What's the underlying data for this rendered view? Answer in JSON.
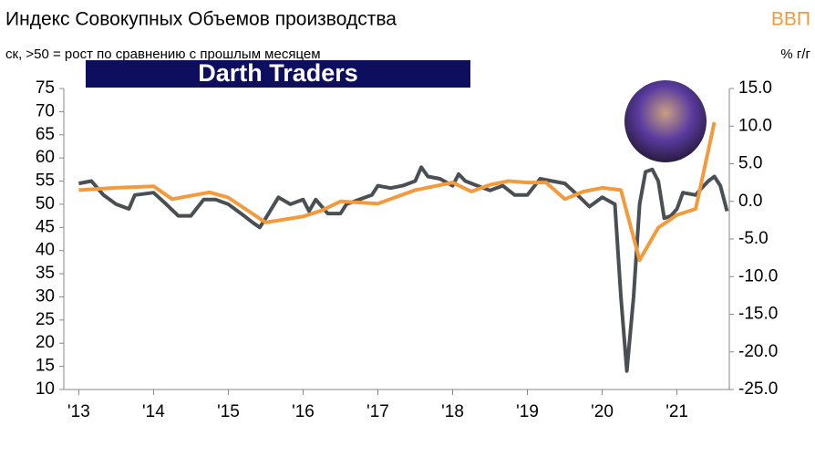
{
  "chart_data": {
    "type": "line",
    "title": "Индекс Совокупных Объемов производства",
    "subtitle": "ск, >50 = рост по сравнению с прошлым месяцем",
    "y2_title": "ВВП",
    "y2_label": "% г/г",
    "watermark": "Darth Traders",
    "xlim": [
      2012.8,
      2021.7
    ],
    "xticks": [
      {
        "value": 2013,
        "label": "'13"
      },
      {
        "value": 2014,
        "label": "'14"
      },
      {
        "value": 2015,
        "label": "'15"
      },
      {
        "value": 2016,
        "label": "'16"
      },
      {
        "value": 2017,
        "label": "'17"
      },
      {
        "value": 2018,
        "label": "'18"
      },
      {
        "value": 2019,
        "label": "'19"
      },
      {
        "value": 2020,
        "label": "'20"
      },
      {
        "value": 2021,
        "label": "'21"
      }
    ],
    "ylim": [
      10,
      75
    ],
    "yticks": [
      10,
      15,
      20,
      25,
      30,
      35,
      40,
      45,
      50,
      55,
      60,
      65,
      70,
      75
    ],
    "y2lim": [
      -25,
      15
    ],
    "y2ticks": [
      {
        "value": -25,
        "label": "-25.0"
      },
      {
        "value": -20,
        "label": "-20.0"
      },
      {
        "value": -15,
        "label": "-15.0"
      },
      {
        "value": -10,
        "label": "-10.0"
      },
      {
        "value": -5,
        "label": "-5.0"
      },
      {
        "value": 0,
        "label": "0.0"
      },
      {
        "value": 5,
        "label": "5.0"
      },
      {
        "value": 10,
        "label": "10.0"
      },
      {
        "value": 15,
        "label": "15.0"
      }
    ],
    "series": [
      {
        "color": "#4a4f54",
        "x": [
          2013.0,
          2013.17,
          2013.33,
          2013.5,
          2013.67,
          2013.75,
          2014.0,
          2014.17,
          2014.33,
          2014.5,
          2014.67,
          2014.83,
          2015.0,
          2015.17,
          2015.33,
          2015.42,
          2015.5,
          2015.67,
          2015.83,
          2016.0,
          2016.08,
          2016.17,
          2016.33,
          2016.5,
          2016.58,
          2016.75,
          2016.92,
          2017.0,
          2017.17,
          2017.33,
          2017.5,
          2017.58,
          2017.67,
          2017.83,
          2018.0,
          2018.08,
          2018.17,
          2018.33,
          2018.5,
          2018.67,
          2018.83,
          2019.0,
          2019.17,
          2019.33,
          2019.5,
          2019.67,
          2019.83,
          2020.0,
          2020.17,
          2020.25,
          2020.33,
          2020.42,
          2020.5,
          2020.58,
          2020.67,
          2020.75,
          2020.83,
          2020.92,
          2021.0,
          2021.08,
          2021.25,
          2021.33,
          2021.42,
          2021.5,
          2021.58,
          2021.67
        ],
        "values": [
          54.5,
          55,
          52,
          50,
          49,
          52,
          52.5,
          50,
          47.5,
          47.5,
          51,
          51,
          50,
          48,
          46,
          45,
          47,
          51.5,
          50,
          51,
          48.5,
          51,
          48,
          48,
          50,
          51,
          52,
          54,
          53.5,
          54,
          55,
          58,
          56,
          55.5,
          54,
          56.5,
          55,
          54,
          53,
          54,
          52,
          52,
          55.5,
          55,
          54.5,
          52,
          49.5,
          51.5,
          50,
          30,
          14,
          30,
          50,
          57,
          57.5,
          55,
          47,
          47.5,
          49,
          52.5,
          52,
          53.5,
          55,
          56,
          54,
          48.5
        ]
      },
      {
        "color": "#f39a3c",
        "axis": "y2",
        "x": [
          2013.0,
          2013.5,
          2014.0,
          2014.25,
          2014.75,
          2015.0,
          2015.5,
          2016.0,
          2016.25,
          2016.5,
          2017.0,
          2017.5,
          2018.0,
          2018.25,
          2018.5,
          2018.75,
          2019.0,
          2019.25,
          2019.5,
          2019.75,
          2020.0,
          2020.25,
          2020.5,
          2020.75,
          2021.0,
          2021.25,
          2021.5
        ],
        "values": [
          1.5,
          1.8,
          2.0,
          0.3,
          1.2,
          0.5,
          -2.8,
          -2.0,
          -1.2,
          0,
          -0.3,
          1.5,
          2.5,
          1.3,
          2.2,
          2.7,
          2.5,
          2.5,
          0.3,
          1.3,
          1.8,
          1.5,
          -7.8,
          -3.5,
          -1.8,
          -1.0,
          10.5
        ]
      }
    ]
  }
}
